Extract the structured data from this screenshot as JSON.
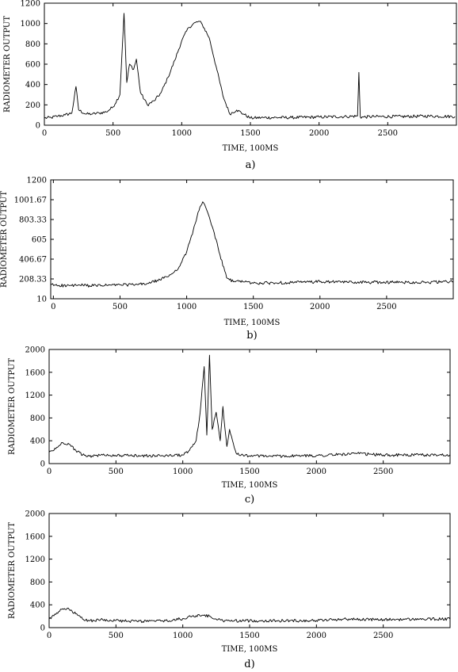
{
  "chart_data": [
    {
      "type": "line",
      "panel_label": "a)",
      "xlabel": "TIME, 100MS",
      "ylabel": "RADIOMETER OUTPUT",
      "xlim": [
        0,
        3000
      ],
      "ylim": [
        0,
        1200
      ],
      "xticks": [
        0,
        500,
        1000,
        1500,
        2000,
        2500
      ],
      "xtick_labels": [
        "0",
        "500",
        "1000",
        "1500",
        "2000",
        "2500"
      ],
      "yticks": [
        0,
        200,
        400,
        600,
        800,
        1000,
        1200
      ],
      "ytick_labels": [
        "0",
        "200",
        "400",
        "600",
        "800",
        "1000",
        "1200"
      ],
      "grid": false,
      "series": [
        {
          "x": [
            0,
            50,
            100,
            150,
            200,
            230,
            250,
            300,
            350,
            400,
            450,
            500,
            550,
            580,
            600,
            620,
            650,
            670,
            700,
            750,
            800,
            850,
            900,
            950,
            1000,
            1050,
            1100,
            1130,
            1150,
            1200,
            1250,
            1300,
            1350,
            1400,
            1450,
            1500,
            1600,
            1800,
            2000,
            2200,
            2280,
            2290,
            2300,
            2320,
            2400,
            2600,
            2800,
            2990
          ],
          "y": [
            70,
            75,
            90,
            100,
            120,
            380,
            150,
            110,
            110,
            120,
            130,
            180,
            300,
            1100,
            420,
            600,
            550,
            650,
            320,
            200,
            240,
            320,
            470,
            640,
            830,
            960,
            1010,
            1020,
            990,
            860,
            580,
            290,
            110,
            150,
            110,
            70,
            75,
            75,
            80,
            85,
            90,
            520,
            80,
            80,
            85,
            85,
            90,
            85
          ]
        }
      ]
    },
    {
      "type": "line",
      "panel_label": "b)",
      "xlabel": "TIME, 100MS",
      "ylabel": "RADIOMETER OUTPUT",
      "xlim": [
        -20,
        3000
      ],
      "ylim": [
        10,
        1200
      ],
      "xticks": [
        0,
        500,
        1000,
        1500,
        2000,
        2500
      ],
      "xtick_labels": [
        "0",
        "500",
        "1000",
        "1500",
        "2000",
        "2500"
      ],
      "yticks": [
        10,
        208.33,
        406.67,
        605,
        803.33,
        1001.67,
        1200
      ],
      "ytick_labels": [
        "10",
        "208.33",
        "406.67",
        "605",
        "803.33",
        "1001.67",
        "1200"
      ],
      "grid": false,
      "series": [
        {
          "x": [
            -20,
            100,
            200,
            300,
            400,
            500,
            600,
            700,
            800,
            850,
            900,
            950,
            1000,
            1050,
            1100,
            1120,
            1150,
            1200,
            1250,
            1300,
            1350,
            1400,
            1500,
            1700,
            2000,
            2300,
            2600,
            2800,
            3000
          ],
          "y": [
            150,
            140,
            145,
            140,
            145,
            150,
            150,
            160,
            200,
            230,
            270,
            340,
            480,
            700,
            930,
            980,
            900,
            700,
            450,
            220,
            180,
            190,
            165,
            170,
            180,
            175,
            175,
            175,
            180
          ]
        }
      ]
    },
    {
      "type": "line",
      "panel_label": "c)",
      "xlabel": "TIME, 100MS",
      "ylabel": "RADIOMETER OUTPUT",
      "xlim": [
        0,
        3000
      ],
      "ylim": [
        0,
        2000
      ],
      "xticks": [
        0,
        500,
        1000,
        1500,
        2000,
        2500
      ],
      "xtick_labels": [
        "0",
        "500",
        "1000",
        "1500",
        "2000",
        "2500"
      ],
      "yticks": [
        0,
        400,
        800,
        1200,
        1600,
        2000
      ],
      "ytick_labels": [
        "0",
        "400",
        "800",
        "1200",
        "1600",
        "2000"
      ],
      "grid": false,
      "series": [
        {
          "x": [
            0,
            50,
            100,
            150,
            200,
            250,
            300,
            400,
            600,
            800,
            1000,
            1050,
            1100,
            1130,
            1160,
            1180,
            1200,
            1220,
            1250,
            1280,
            1300,
            1330,
            1350,
            1400,
            1450,
            1500,
            1700,
            2000,
            2300,
            2500,
            2800,
            3000
          ],
          "y": [
            200,
            260,
            370,
            340,
            230,
            150,
            130,
            150,
            140,
            135,
            150,
            230,
            400,
            900,
            1700,
            500,
            1900,
            600,
            900,
            400,
            1000,
            300,
            600,
            180,
            150,
            135,
            130,
            140,
            175,
            150,
            150,
            155
          ]
        }
      ]
    },
    {
      "type": "line",
      "panel_label": "d)",
      "xlabel": "TIME, 100MS",
      "ylabel": "RADIOMETER OUTPUT",
      "xlim": [
        0,
        3000
      ],
      "ylim": [
        0,
        2000
      ],
      "xticks": [
        0,
        500,
        1000,
        1500,
        2000,
        2500
      ],
      "xtick_labels": [
        "0",
        "500",
        "1000",
        "1500",
        "2000",
        "2500"
      ],
      "yticks": [
        0,
        400,
        800,
        1200,
        1600,
        2000
      ],
      "ytick_labels": [
        "0",
        "400",
        "800",
        "1200",
        "1600",
        "2000"
      ],
      "grid": false,
      "series": [
        {
          "x": [
            0,
            50,
            100,
            150,
            200,
            250,
            300,
            400,
            600,
            800,
            900,
            1000,
            1100,
            1150,
            1200,
            1250,
            1300,
            1500,
            1700,
            2000,
            2200,
            2500,
            2800,
            3000
          ],
          "y": [
            150,
            230,
            330,
            320,
            240,
            150,
            120,
            140,
            110,
            115,
            120,
            160,
            210,
            220,
            200,
            150,
            120,
            120,
            120,
            125,
            150,
            140,
            150,
            150
          ]
        }
      ]
    }
  ]
}
